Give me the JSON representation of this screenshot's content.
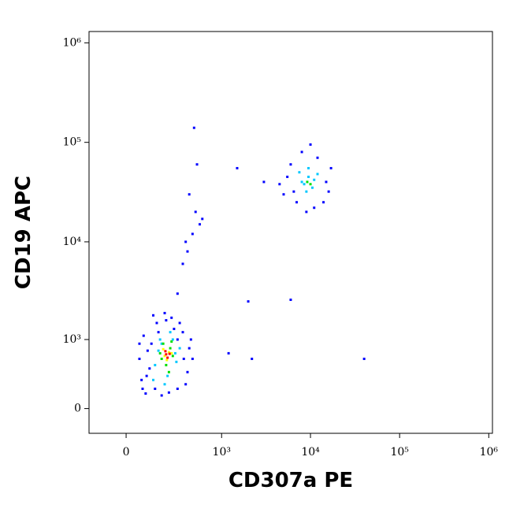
{
  "chart_data": {
    "type": "scatter",
    "x_label": "CD307a PE",
    "y_label": "CD19 APC",
    "xlim": [
      -190,
      1100000
    ],
    "ylim": [
      -255,
      1300000
    ],
    "xticks": [
      0,
      {
        "value": 1000,
        "label": "10³"
      },
      {
        "value": 10000,
        "label": "10⁴"
      },
      {
        "value": 100000,
        "label": "10⁵"
      },
      {
        "value": 1000000,
        "label": "10⁶"
      }
    ],
    "yticks": [
      0,
      {
        "value": 1000,
        "label": "10³"
      },
      {
        "value": 10000,
        "label": "10⁴"
      },
      {
        "value": 100000,
        "label": "10⁵"
      },
      {
        "value": 1000000,
        "label": "10⁶"
      }
    ],
    "series": [
      {
        "color": "#0000ff",
        "x": [
          70,
          90,
          120,
          60,
          150,
          250,
          350,
          420,
          400,
          300,
          180,
          110,
          80,
          200,
          320,
          440,
          380,
          140,
          100,
          270,
          230,
          160,
          360,
          95,
          60,
          210,
          460,
          130,
          300,
          75,
          5000,
          6000,
          8000,
          12000,
          15000,
          14000,
          9000,
          5500,
          7000,
          17000,
          4500,
          10000,
          11000,
          6500,
          16000,
          480,
          520,
          420,
          500,
          560,
          380,
          400,
          460,
          350,
          300,
          600,
          1500,
          2000,
          2200,
          40000,
          1200,
          6000,
          3000
        ],
        "y": [
          300,
          150,
          900,
          600,
          1500,
          1700,
          1200,
          800,
          400,
          200,
          130,
          450,
          1100,
          1900,
          1500,
          1000,
          250,
          200,
          750,
          1300,
          160,
          1200,
          600,
          350,
          900,
          1600,
          600,
          1800,
          1000,
          200,
          30000,
          60000,
          80000,
          70000,
          40000,
          25000,
          20000,
          45000,
          25000,
          55000,
          38000,
          95000,
          22000,
          32000,
          32000,
          140000,
          60000,
          30000,
          20000,
          15000,
          10000,
          8000,
          12000,
          6000,
          3000,
          17000,
          55000,
          2500,
          600,
          600,
          700,
          2600,
          40000
        ]
      },
      {
        "color": "#00c8ff",
        "x": [
          140,
          260,
          180,
          290,
          220,
          160,
          320,
          240,
          130,
          200,
          280,
          170,
          8000,
          9500,
          10500,
          7500,
          9000,
          11000,
          8500,
          12000,
          9500
        ],
        "y": [
          500,
          1000,
          900,
          550,
          350,
          750,
          800,
          1200,
          300,
          250,
          700,
          1000,
          40000,
          45000,
          35000,
          50000,
          32000,
          42000,
          38000,
          48000,
          55000
        ]
      },
      {
        "color": "#00e000",
        "x": [
          180,
          240,
          210,
          260,
          190,
          230,
          170,
          250,
          9200,
          10000
        ],
        "y": [
          600,
          800,
          500,
          650,
          900,
          400,
          700,
          950,
          40000,
          38000
        ]
      },
      {
        "color": "#ffff00",
        "x": [
          200,
          230,
          215,
          190,
          250
        ],
        "y": [
          650,
          720,
          580,
          780,
          700
        ]
      },
      {
        "color": "#ff0000",
        "x": [
          210,
          220,
          205,
          235
        ],
        "y": [
          680,
          620,
          740,
          690
        ]
      }
    ]
  }
}
